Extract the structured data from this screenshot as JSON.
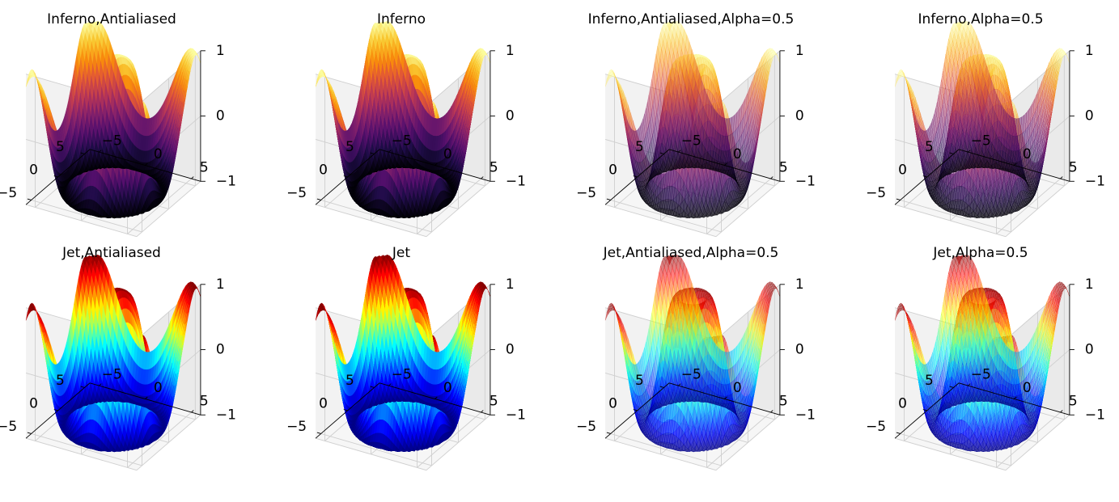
{
  "chart_data": [
    {
      "type": "surface3d",
      "title": "Inferno,Antialiased",
      "colormap": "inferno",
      "antialiased": true,
      "alpha": 1.0,
      "x_ticks": [
        -5,
        0,
        5
      ],
      "y_ticks": [
        -5,
        0,
        5
      ],
      "z_ticks": [
        -1,
        0,
        1
      ],
      "x_tick_labels": [
        "−5",
        "0",
        "5"
      ],
      "y_tick_labels": [
        "−5",
        "0",
        "5"
      ],
      "z_tick_labels": [
        "−1",
        "0",
        "1"
      ],
      "xlim": [
        -6,
        6
      ],
      "ylim": [
        -6,
        6
      ],
      "zlim": [
        -1,
        1
      ],
      "grid": true
    },
    {
      "type": "surface3d",
      "title": "Inferno",
      "colormap": "inferno",
      "antialiased": false,
      "alpha": 1.0,
      "x_ticks": [
        -5,
        0,
        5
      ],
      "y_ticks": [
        -5,
        0,
        5
      ],
      "z_ticks": [
        -1,
        0,
        1
      ],
      "x_tick_labels": [
        "−5",
        "0",
        "5"
      ],
      "y_tick_labels": [
        "−5",
        "0",
        "5"
      ],
      "z_tick_labels": [
        "−1",
        "0",
        "1"
      ],
      "xlim": [
        -6,
        6
      ],
      "ylim": [
        -6,
        6
      ],
      "zlim": [
        -1,
        1
      ],
      "grid": true
    },
    {
      "type": "surface3d",
      "title": "Inferno,Antialiased,Alpha=0.5",
      "colormap": "inferno",
      "antialiased": true,
      "alpha": 0.5,
      "x_ticks": [
        -5,
        0,
        5
      ],
      "y_ticks": [
        -5,
        0,
        5
      ],
      "z_ticks": [
        -1,
        0,
        1
      ],
      "x_tick_labels": [
        "−5",
        "0",
        "5"
      ],
      "y_tick_labels": [
        "−5",
        "0",
        "5"
      ],
      "z_tick_labels": [
        "−1",
        "0",
        "1"
      ],
      "xlim": [
        -6,
        6
      ],
      "ylim": [
        -6,
        6
      ],
      "zlim": [
        -1,
        1
      ],
      "grid": true
    },
    {
      "type": "surface3d",
      "title": "Inferno,Alpha=0.5",
      "colormap": "inferno",
      "antialiased": false,
      "alpha": 0.5,
      "x_ticks": [
        -5,
        0,
        5
      ],
      "y_ticks": [
        -5,
        0,
        5
      ],
      "z_ticks": [
        -1,
        0,
        1
      ],
      "x_tick_labels": [
        "−5",
        "0",
        "5"
      ],
      "y_tick_labels": [
        "−5",
        "0",
        "5"
      ],
      "z_tick_labels": [
        "−1",
        "0",
        "1"
      ],
      "xlim": [
        -6,
        6
      ],
      "ylim": [
        -6,
        6
      ],
      "zlim": [
        -1,
        1
      ],
      "grid": true
    },
    {
      "type": "surface3d",
      "title": "Jet,Antialiased",
      "colormap": "jet",
      "antialiased": true,
      "alpha": 1.0,
      "x_ticks": [
        -5,
        0,
        5
      ],
      "y_ticks": [
        -5,
        0,
        5
      ],
      "z_ticks": [
        -1,
        0,
        1
      ],
      "x_tick_labels": [
        "−5",
        "0",
        "5"
      ],
      "y_tick_labels": [
        "−5",
        "0",
        "5"
      ],
      "z_tick_labels": [
        "−1",
        "0",
        "1"
      ],
      "xlim": [
        -6,
        6
      ],
      "ylim": [
        -6,
        6
      ],
      "zlim": [
        -1,
        1
      ],
      "grid": true
    },
    {
      "type": "surface3d",
      "title": "Jet",
      "colormap": "jet",
      "antialiased": false,
      "alpha": 1.0,
      "x_ticks": [
        -5,
        0,
        5
      ],
      "y_ticks": [
        -5,
        0,
        5
      ],
      "z_ticks": [
        -1,
        0,
        1
      ],
      "x_tick_labels": [
        "−5",
        "0",
        "5"
      ],
      "y_tick_labels": [
        "−5",
        "0",
        "5"
      ],
      "z_tick_labels": [
        "−1",
        "0",
        "1"
      ],
      "xlim": [
        -6,
        6
      ],
      "ylim": [
        -6,
        6
      ],
      "zlim": [
        -1,
        1
      ],
      "grid": true
    },
    {
      "type": "surface3d",
      "title": "Jet,Antialiased,Alpha=0.5",
      "colormap": "jet",
      "antialiased": true,
      "alpha": 0.5,
      "x_ticks": [
        -5,
        0,
        5
      ],
      "y_ticks": [
        -5,
        0,
        5
      ],
      "z_ticks": [
        -1,
        0,
        1
      ],
      "x_tick_labels": [
        "−5",
        "0",
        "5"
      ],
      "y_tick_labels": [
        "−5",
        "0",
        "5"
      ],
      "z_tick_labels": [
        "−1",
        "0",
        "1"
      ],
      "xlim": [
        -6,
        6
      ],
      "ylim": [
        -6,
        6
      ],
      "zlim": [
        -1,
        1
      ],
      "grid": true
    },
    {
      "type": "surface3d",
      "title": "Jet,Alpha=0.5",
      "colormap": "jet",
      "antialiased": false,
      "alpha": 0.5,
      "x_ticks": [
        -5,
        0,
        5
      ],
      "y_ticks": [
        -5,
        0,
        5
      ],
      "z_ticks": [
        -1,
        0,
        1
      ],
      "x_tick_labels": [
        "−5",
        "0",
        "5"
      ],
      "y_tick_labels": [
        "−5",
        "0",
        "5"
      ],
      "z_tick_labels": [
        "−1",
        "0",
        "1"
      ],
      "xlim": [
        -6,
        6
      ],
      "ylim": [
        -6,
        6
      ],
      "zlim": [
        -1,
        1
      ],
      "grid": true
    }
  ],
  "colors": {
    "pane_left": "#f2f2f2",
    "pane_back": "#eaeaea",
    "pane_floor": "#f6f6f6",
    "grid": "#cfcfcf",
    "axis_line": "#000000",
    "text": "#000000"
  }
}
